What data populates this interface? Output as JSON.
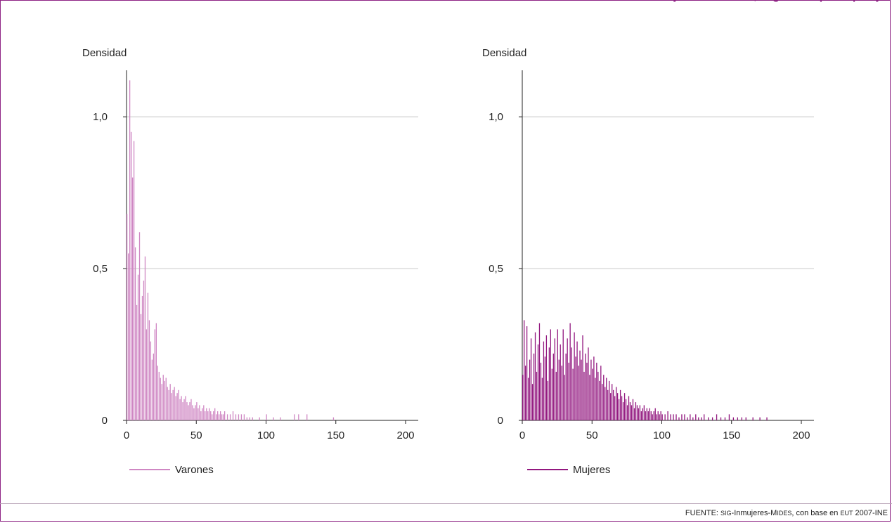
{
  "header": {
    "title": "Mujeres · Varones, según tiempo de pareja"
  },
  "footer": {
    "source_prefix": "FUENTE: ",
    "source_sig": "SIG",
    "source_mid": "-Inmujeres-M",
    "source_ides": "IDES",
    "source_mid2": ", con base en ",
    "source_eut": "EUT",
    "source_end": " 2007-INE"
  },
  "colors": {
    "varones": "#cf87c3",
    "mujeres": "#92177f",
    "frame": "#8e2384"
  },
  "chart_data": [
    {
      "type": "bar",
      "ylabel": "Densidad",
      "legend": "Varones",
      "xlim": [
        0,
        200
      ],
      "ylim": [
        0,
        1.13
      ],
      "yticks": [
        0,
        0.5,
        1.0
      ],
      "ytick_labels": [
        "0",
        "0,5",
        "1,0"
      ],
      "xticks": [
        0,
        50,
        100,
        150,
        200
      ],
      "xtick_labels": [
        "0",
        "50",
        "100",
        "150",
        "200"
      ],
      "grid": true,
      "x": [
        0,
        1,
        2,
        3,
        4,
        5,
        6,
        7,
        8,
        9,
        10,
        11,
        12,
        13,
        14,
        15,
        16,
        17,
        18,
        19,
        20,
        21,
        22,
        23,
        24,
        25,
        26,
        27,
        28,
        29,
        30,
        31,
        32,
        33,
        34,
        35,
        36,
        37,
        38,
        39,
        40,
        41,
        42,
        43,
        44,
        45,
        46,
        47,
        48,
        49,
        50,
        51,
        52,
        53,
        54,
        55,
        56,
        57,
        58,
        59,
        60,
        61,
        62,
        63,
        64,
        65,
        66,
        67,
        68,
        69,
        70,
        72,
        74,
        76,
        78,
        80,
        82,
        84,
        86,
        88,
        90,
        95,
        100,
        105,
        110,
        120,
        123,
        129,
        148
      ],
      "values": [
        0.68,
        0.55,
        1.12,
        0.95,
        0.8,
        0.92,
        0.57,
        0.38,
        0.48,
        0.62,
        0.35,
        0.41,
        0.46,
        0.54,
        0.3,
        0.42,
        0.33,
        0.26,
        0.2,
        0.22,
        0.3,
        0.32,
        0.18,
        0.16,
        0.14,
        0.12,
        0.15,
        0.13,
        0.14,
        0.11,
        0.1,
        0.12,
        0.09,
        0.1,
        0.11,
        0.08,
        0.09,
        0.1,
        0.07,
        0.08,
        0.06,
        0.07,
        0.08,
        0.06,
        0.05,
        0.06,
        0.07,
        0.05,
        0.04,
        0.05,
        0.06,
        0.04,
        0.05,
        0.03,
        0.04,
        0.05,
        0.03,
        0.04,
        0.03,
        0.04,
        0.03,
        0.02,
        0.03,
        0.04,
        0.02,
        0.03,
        0.02,
        0.03,
        0.02,
        0.02,
        0.03,
        0.02,
        0.02,
        0.03,
        0.02,
        0.02,
        0.02,
        0.02,
        0.01,
        0.01,
        0.01,
        0.01,
        0.02,
        0.01,
        0.01,
        0.02,
        0.02,
        0.02,
        0.01
      ]
    },
    {
      "type": "bar",
      "ylabel": "Densidad",
      "legend": "Mujeres",
      "xlim": [
        0,
        200
      ],
      "ylim": [
        0,
        1.13
      ],
      "yticks": [
        0,
        0.5,
        1.0
      ],
      "ytick_labels": [
        "0",
        "0,5",
        "1,0"
      ],
      "xticks": [
        0,
        50,
        100,
        150,
        200
      ],
      "xtick_labels": [
        "0",
        "50",
        "100",
        "150",
        "200"
      ],
      "grid": true,
      "x": [
        0,
        1,
        2,
        3,
        4,
        5,
        6,
        7,
        8,
        9,
        10,
        11,
        12,
        13,
        14,
        15,
        16,
        17,
        18,
        19,
        20,
        21,
        22,
        23,
        24,
        25,
        26,
        27,
        28,
        29,
        30,
        31,
        32,
        33,
        34,
        35,
        36,
        37,
        38,
        39,
        40,
        41,
        42,
        43,
        44,
        45,
        46,
        47,
        48,
        49,
        50,
        51,
        52,
        53,
        54,
        55,
        56,
        57,
        58,
        59,
        60,
        61,
        62,
        63,
        64,
        65,
        66,
        67,
        68,
        69,
        70,
        71,
        72,
        73,
        74,
        75,
        76,
        77,
        78,
        79,
        80,
        81,
        82,
        83,
        84,
        85,
        86,
        87,
        88,
        89,
        90,
        91,
        92,
        93,
        94,
        95,
        96,
        97,
        98,
        99,
        100,
        102,
        104,
        106,
        108,
        110,
        112,
        114,
        116,
        118,
        120,
        122,
        124,
        126,
        128,
        130,
        133,
        136,
        139,
        142,
        145,
        148,
        151,
        154,
        157,
        160,
        165,
        170,
        175
      ],
      "values": [
        0.15,
        0.33,
        0.18,
        0.31,
        0.14,
        0.2,
        0.27,
        0.12,
        0.22,
        0.29,
        0.16,
        0.25,
        0.32,
        0.19,
        0.14,
        0.26,
        0.21,
        0.28,
        0.13,
        0.24,
        0.3,
        0.17,
        0.22,
        0.27,
        0.16,
        0.3,
        0.2,
        0.25,
        0.18,
        0.3,
        0.15,
        0.22,
        0.27,
        0.19,
        0.32,
        0.24,
        0.17,
        0.29,
        0.21,
        0.26,
        0.18,
        0.23,
        0.2,
        0.28,
        0.16,
        0.22,
        0.19,
        0.24,
        0.15,
        0.2,
        0.17,
        0.21,
        0.14,
        0.19,
        0.16,
        0.13,
        0.18,
        0.12,
        0.15,
        0.11,
        0.14,
        0.1,
        0.13,
        0.09,
        0.12,
        0.1,
        0.08,
        0.11,
        0.09,
        0.07,
        0.1,
        0.08,
        0.06,
        0.09,
        0.07,
        0.05,
        0.08,
        0.06,
        0.05,
        0.07,
        0.04,
        0.06,
        0.05,
        0.04,
        0.05,
        0.03,
        0.04,
        0.05,
        0.03,
        0.04,
        0.03,
        0.04,
        0.03,
        0.02,
        0.03,
        0.04,
        0.02,
        0.03,
        0.02,
        0.03,
        0.02,
        0.02,
        0.03,
        0.02,
        0.02,
        0.02,
        0.01,
        0.02,
        0.02,
        0.01,
        0.02,
        0.01,
        0.02,
        0.01,
        0.01,
        0.02,
        0.01,
        0.01,
        0.02,
        0.01,
        0.01,
        0.02,
        0.01,
        0.01,
        0.01,
        0.01,
        0.01,
        0.01,
        0.01
      ]
    }
  ]
}
